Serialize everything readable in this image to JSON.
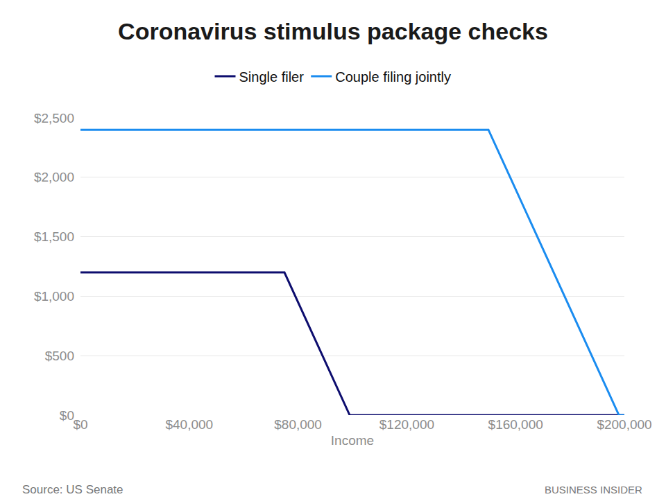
{
  "chart_data": {
    "type": "line",
    "title": "Coronavirus stimulus package checks",
    "x_label": "Income",
    "source": "Source: US Senate",
    "credit": "BUSINESS INSIDER",
    "series": [
      {
        "name": "Single filer",
        "color": "#0d0d6e",
        "x": [
          0,
          75000,
          99000,
          200000
        ],
        "values": [
          1200,
          1200,
          0,
          0
        ]
      },
      {
        "name": "Couple filing jointly",
        "color": "#1a8cf0",
        "x": [
          0,
          150000,
          198000,
          200000
        ],
        "values": [
          2400,
          2400,
          0,
          0
        ]
      }
    ],
    "xlim": [
      0,
      200000
    ],
    "xticks": [
      {
        "value": 0,
        "label": "$0"
      },
      {
        "value": 40000,
        "label": "$40,000"
      },
      {
        "value": 80000,
        "label": "$80,000"
      },
      {
        "value": 120000,
        "label": "$120,000"
      },
      {
        "value": 160000,
        "label": "$160,000"
      },
      {
        "value": 200000,
        "label": "$200,000"
      }
    ],
    "ylim": [
      0,
      2500
    ],
    "yticks": [
      {
        "value": 0,
        "label": "$0"
      },
      {
        "value": 500,
        "label": "$500"
      },
      {
        "value": 1000,
        "label": "$1,000"
      },
      {
        "value": 1500,
        "label": "$1,500"
      },
      {
        "value": 2000,
        "label": "$2,000"
      },
      {
        "value": 2500,
        "label": "$2,500"
      }
    ],
    "grid": true,
    "legend": "top"
  }
}
